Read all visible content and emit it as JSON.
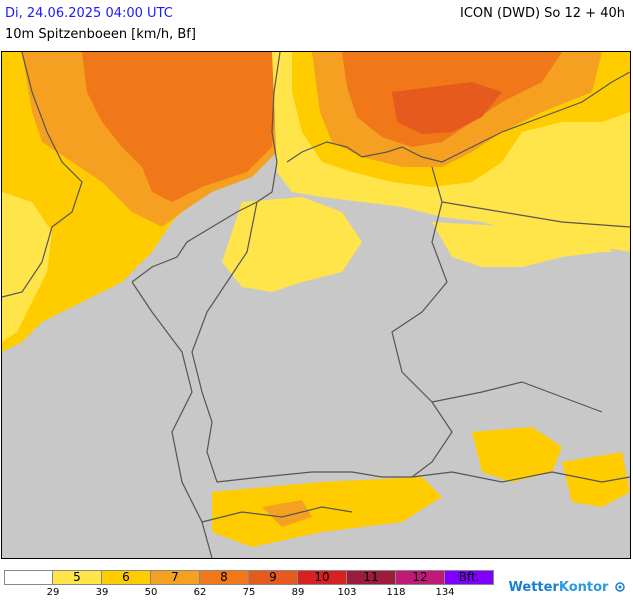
{
  "header": {
    "datetime": "Di, 24.06.2025 04:00 UTC",
    "model_run": "ICON (DWD) So 12 + 40h",
    "parameter": "10m Spitzenboeen [km/h, Bf]"
  },
  "colors": {
    "background_grey": "#c8c8c8",
    "bft_5": "#ffe44a",
    "bft_6": "#ffcc00",
    "bft_7": "#f5a020",
    "bft_8": "#f07818",
    "bft_9": "#e65a1e",
    "bft_10": "#d72020",
    "bft_11": "#9b1c3c",
    "bft_12": "#c01a78",
    "bft_above": "#8000ff",
    "border_line": "#555555"
  },
  "legend": {
    "classes": [
      {
        "label": "",
        "color": "#ffffff"
      },
      {
        "label": "5",
        "color": "#ffe44a"
      },
      {
        "label": "6",
        "color": "#ffcc00"
      },
      {
        "label": "7",
        "color": "#f5a020"
      },
      {
        "label": "8",
        "color": "#f07818"
      },
      {
        "label": "9",
        "color": "#e65a1e"
      },
      {
        "label": "10",
        "color": "#d72020"
      },
      {
        "label": "11",
        "color": "#9b1c3c"
      },
      {
        "label": "12",
        "color": "#c01a78"
      },
      {
        "label": "Bft.",
        "color": "#8000ff"
      }
    ],
    "kmh_ticks": [
      "29",
      "39",
      "50",
      "62",
      "75",
      "89",
      "103",
      "118",
      "134"
    ]
  },
  "brand": {
    "name_part1": "Wetter",
    "name_part2": "Kontor",
    "logo_icon": "wetterkontor-logo-icon"
  }
}
